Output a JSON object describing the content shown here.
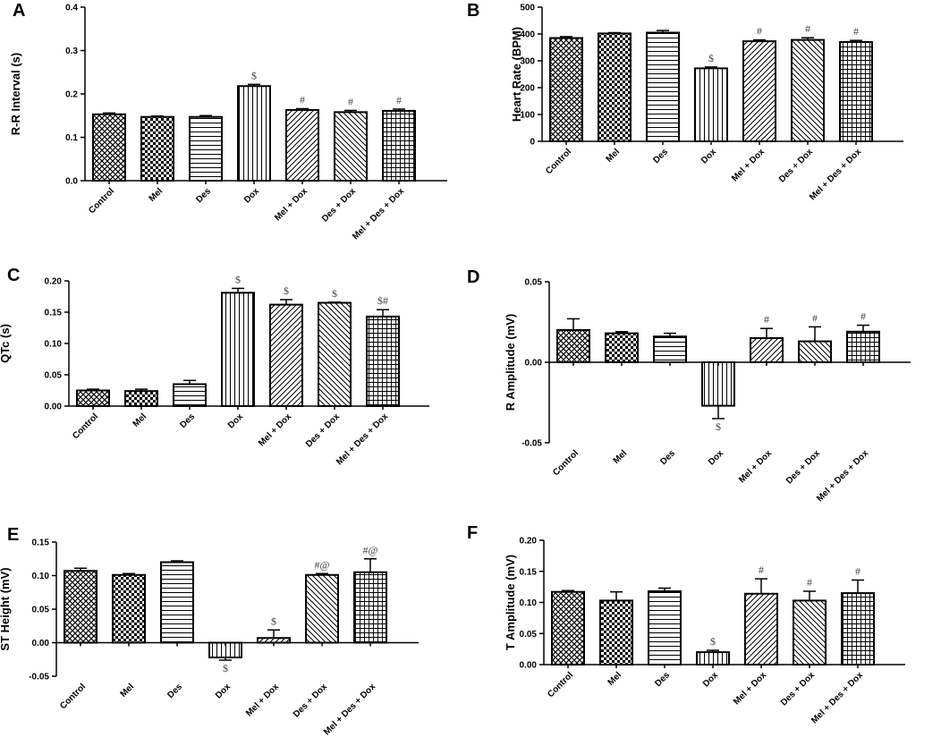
{
  "colors": {
    "bar_fill": "#ffffff",
    "stroke": "#000000",
    "annotation": "#444444"
  },
  "chart_data": [
    {
      "panel": "A",
      "type": "bar",
      "ylabel": "R-R  Interval (s)",
      "ylim": [
        0,
        0.4
      ],
      "yticks": [
        0.0,
        0.1,
        0.2,
        0.3,
        0.4
      ],
      "ytick_labels": [
        "0.0",
        "0.1",
        "0.2",
        "0.3",
        "0.4"
      ],
      "categories": [
        "Control",
        "Mel",
        "Des",
        "Dox",
        "Mel + Dox",
        "Des + Dox",
        "Mel + Des + Dox"
      ],
      "patterns": [
        "cross",
        "checker",
        "hlines",
        "vlines",
        "diag",
        "diag2",
        "grid"
      ],
      "values": [
        0.153,
        0.147,
        0.147,
        0.218,
        0.163,
        0.158,
        0.161
      ],
      "errors": [
        0.003,
        0.002,
        0.003,
        0.004,
        0.003,
        0.004,
        0.004
      ],
      "annotations": [
        "",
        "",
        "",
        "$",
        "#",
        "#",
        "#"
      ]
    },
    {
      "panel": "B",
      "type": "bar",
      "ylabel": "Heart Rate (BPM)",
      "ylim": [
        0,
        500
      ],
      "yticks": [
        0,
        100,
        200,
        300,
        400,
        500
      ],
      "ytick_labels": [
        "0",
        "100",
        "200",
        "300",
        "400",
        "500"
      ],
      "categories": [
        "Control",
        "Mel",
        "Des",
        "Dox",
        "Mel + Dox",
        "Des + Dox",
        "Mel + Des + Dox"
      ],
      "patterns": [
        "cross",
        "checker",
        "hlines",
        "vlines",
        "diag",
        "diag2",
        "grid"
      ],
      "values": [
        385,
        402,
        405,
        272,
        373,
        378,
        370
      ],
      "errors": [
        5,
        3,
        8,
        5,
        5,
        8,
        6
      ],
      "annotations": [
        "",
        "",
        "",
        "$",
        "#",
        "#",
        "#"
      ]
    },
    {
      "panel": "C",
      "type": "bar",
      "ylabel": "QTc (s)",
      "ylim": [
        0,
        0.2
      ],
      "yticks": [
        0.0,
        0.05,
        0.1,
        0.15,
        0.2
      ],
      "ytick_labels": [
        "0.00",
        "0.05",
        "0.10",
        "0.15",
        "0.20"
      ],
      "categories": [
        "Control",
        "Mel",
        "Des",
        "Dox",
        "Mel + Dox",
        "Des + Dox",
        "Mel + Des + Dox"
      ],
      "patterns": [
        "cross",
        "checker",
        "hlines",
        "vlines",
        "diag",
        "diag2",
        "grid"
      ],
      "values": [
        0.025,
        0.024,
        0.035,
        0.181,
        0.162,
        0.165,
        0.143
      ],
      "errors": [
        0.002,
        0.003,
        0.006,
        0.007,
        0.008,
        0.001,
        0.011
      ],
      "annotations": [
        "",
        "",
        "",
        "$",
        "$",
        "$",
        "$#"
      ]
    },
    {
      "panel": "D",
      "type": "bar",
      "ylabel": "R Amplitude (mV)",
      "ylim": [
        -0.05,
        0.05
      ],
      "yticks": [
        -0.05,
        0.0,
        0.05
      ],
      "ytick_labels": [
        "-0.05",
        "0.00",
        "0.05"
      ],
      "categories": [
        "Control",
        "Mel",
        "Des",
        "Dox",
        "Mel + Dox",
        "Des + Dox",
        "Mel + Des + Dox"
      ],
      "patterns": [
        "cross",
        "checker",
        "hlines",
        "vlines",
        "diag",
        "diag2",
        "grid"
      ],
      "values": [
        0.02,
        0.018,
        0.016,
        -0.027,
        0.015,
        0.013,
        0.019
      ],
      "errors": [
        0.007,
        0.001,
        0.002,
        0.008,
        0.006,
        0.009,
        0.004
      ],
      "annotations": [
        "",
        "",
        "",
        "$",
        "#",
        "#",
        "#"
      ]
    },
    {
      "panel": "E",
      "type": "bar",
      "ylabel": "ST Height (mV)",
      "ylim": [
        -0.05,
        0.15
      ],
      "yticks": [
        -0.05,
        0.0,
        0.05,
        0.1,
        0.15
      ],
      "ytick_labels": [
        "-0.05",
        "0.00",
        "0.05",
        "0.10",
        "0.15"
      ],
      "categories": [
        "Control",
        "Mel",
        "Des",
        "Dox",
        "Mel + Dox",
        "Des + Dox",
        "Mel + Des + Dox"
      ],
      "patterns": [
        "cross",
        "checker",
        "hlines",
        "vlines",
        "diag",
        "diag2",
        "grid"
      ],
      "values": [
        0.107,
        0.101,
        0.12,
        -0.022,
        0.007,
        0.101,
        0.105
      ],
      "errors": [
        0.004,
        0.002,
        0.002,
        0.004,
        0.012,
        0.002,
        0.02
      ],
      "annotations": [
        "",
        "",
        "",
        "$",
        "$",
        "#@",
        "#@"
      ]
    },
    {
      "panel": "F",
      "type": "bar",
      "ylabel": "T Amplitude (mV)",
      "ylim": [
        0,
        0.2
      ],
      "yticks": [
        0.0,
        0.05,
        0.1,
        0.15,
        0.2
      ],
      "ytick_labels": [
        "0.00",
        "0.05",
        "0.10",
        "0.15",
        "0.20"
      ],
      "categories": [
        "Control",
        "Mel",
        "Des",
        "Dox",
        "Mel + Dox",
        "Des + Dox",
        "Mel + Des + Dox"
      ],
      "patterns": [
        "cross",
        "checker",
        "hlines",
        "vlines",
        "diag",
        "diag2",
        "grid"
      ],
      "values": [
        0.117,
        0.103,
        0.118,
        0.02,
        0.114,
        0.103,
        0.115
      ],
      "errors": [
        0.002,
        0.014,
        0.005,
        0.003,
        0.024,
        0.015,
        0.021
      ],
      "annotations": [
        "",
        "",
        "",
        "$",
        "#",
        "#",
        "#"
      ]
    }
  ]
}
